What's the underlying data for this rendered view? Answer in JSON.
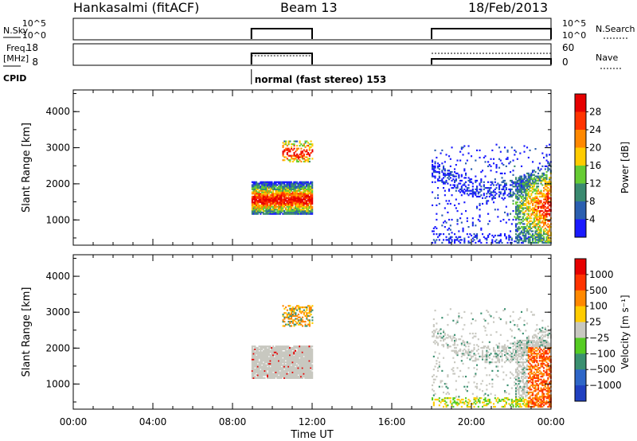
{
  "header": {
    "radar": "Hankasalmi (fitACF)",
    "beam": "Beam 13",
    "date": "18/Feb/2013"
  },
  "status_panels": {
    "nsky_label": "N.Sky",
    "nsearch_label": "N.Search",
    "freq_label_1": "Freq.",
    "freq_label_2": "[MHz]",
    "nave_label": "Nave",
    "cpid_label": "CPID",
    "noise_ticks": [
      "10^5",
      "10^0"
    ],
    "freq_ticks": [
      "18",
      "8"
    ],
    "nave_ticks": [
      "60",
      "0"
    ],
    "cpid_text": "normal (fast stereo) 153"
  },
  "chart_data": [
    {
      "type": "heatmap",
      "parameter": "Power",
      "ylabel": "Slant Range [km]",
      "yticks": [
        "1000",
        "2000",
        "3000",
        "4000"
      ],
      "ylim": [
        300,
        4600
      ],
      "xlim_hours": [
        0,
        24
      ],
      "colorbar_label": "Power [dB]",
      "colorbar_ticks": [
        "4",
        "8",
        "12",
        "16",
        "20",
        "24",
        "28"
      ],
      "colorbar_colors": [
        "#1a1aff",
        "#2b5fb0",
        "#3a8a70",
        "#66cc33",
        "#ffcc00",
        "#ff8800",
        "#ff3300",
        "#e60000"
      ],
      "regions": [
        {
          "t0": 8.95,
          "t1": 12.0,
          "r0": 1150,
          "r1": 2050,
          "core": 1550
        },
        {
          "t0": 10.5,
          "t1": 12.0,
          "r0": 2600,
          "r1": 3200,
          "core": 2850
        },
        {
          "t0": 18.0,
          "t1": 24.0,
          "r0": 350,
          "r1": 3100,
          "core": 1300
        }
      ]
    },
    {
      "type": "heatmap",
      "parameter": "Velocity",
      "ylabel": "Slant Range [km]",
      "yticks": [
        "1000",
        "2000",
        "3000",
        "4000"
      ],
      "ylim": [
        300,
        4600
      ],
      "xlim_hours": [
        0,
        24
      ],
      "colorbar_label": "Velocity [m s⁻¹]",
      "colorbar_ticks": [
        "1000",
        "500",
        "100",
        "25",
        "−25",
        "−100",
        "−500",
        "−1000"
      ],
      "colorbar_colors": [
        "#2040c0",
        "#2e66c8",
        "#3a9070",
        "#55cc22",
        "#c8c8c0",
        "#ffcc00",
        "#ff8800",
        "#ff3300",
        "#e60000"
      ],
      "regions": [
        {
          "t0": 8.95,
          "t1": 12.0,
          "r0": 1150,
          "r1": 2050,
          "core": 1550
        },
        {
          "t0": 10.5,
          "t1": 12.0,
          "r0": 2600,
          "r1": 3200,
          "core": 2850
        },
        {
          "t0": 18.0,
          "t1": 24.0,
          "r0": 350,
          "r1": 3100,
          "core": 1300
        }
      ]
    }
  ],
  "x_axis": {
    "label": "Time UT",
    "ticks": [
      "00:00",
      "04:00",
      "08:00",
      "12:00",
      "16:00",
      "20:00",
      "00:00"
    ],
    "tick_hours": [
      0,
      4,
      8,
      12,
      16,
      20,
      24
    ]
  }
}
